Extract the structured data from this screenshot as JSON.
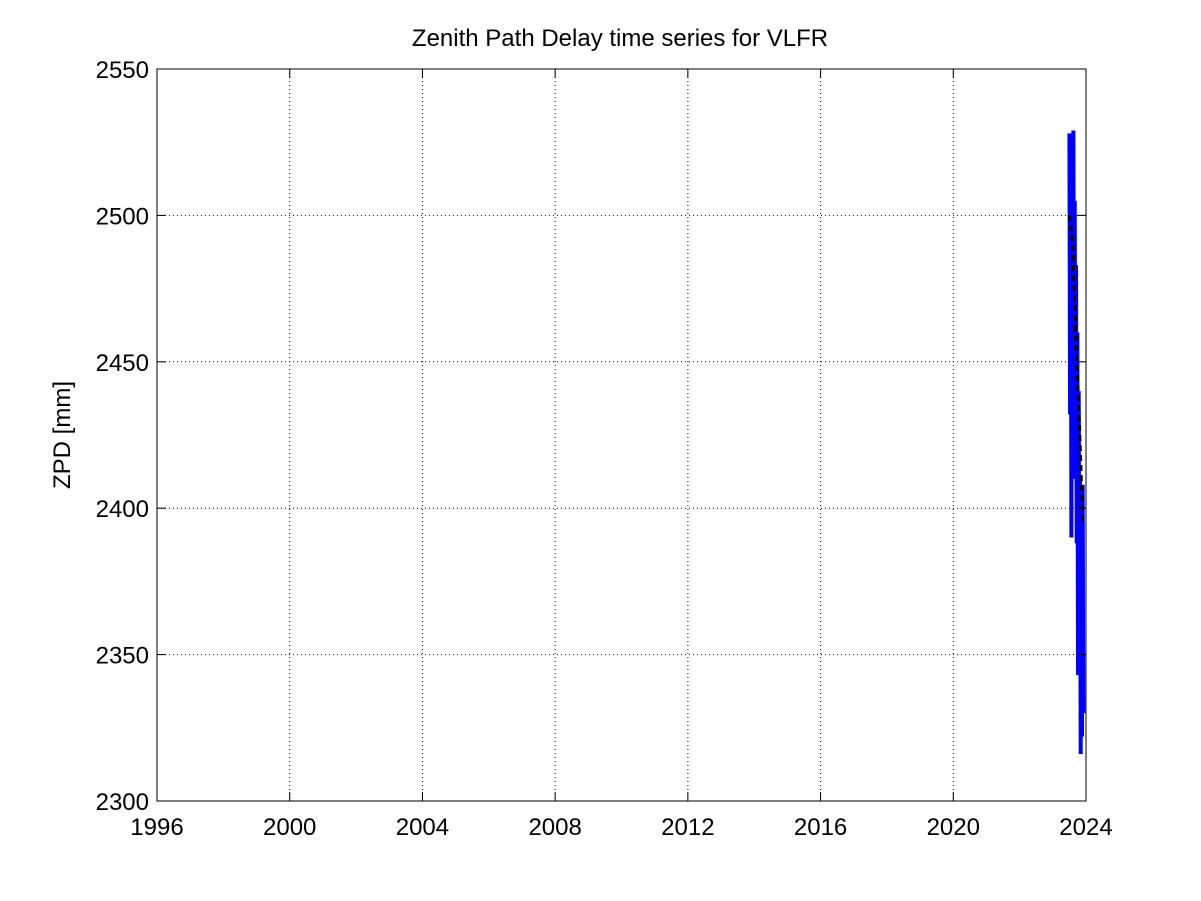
{
  "chart_data": {
    "type": "line",
    "title": "Zenith Path Delay time series for VLFR",
    "xlabel": "",
    "ylabel": "ZPD [mm]",
    "xlim": [
      1996,
      2024
    ],
    "ylim": [
      2300,
      2550
    ],
    "x_ticks": [
      1996,
      2000,
      2004,
      2008,
      2012,
      2016,
      2020,
      2024
    ],
    "x_tick_labels": [
      "1996",
      "2000",
      "2004",
      "2008",
      "2012",
      "2016",
      "2020",
      "2024"
    ],
    "y_ticks": [
      2300,
      2350,
      2400,
      2450,
      2500,
      2550
    ],
    "y_tick_labels": [
      "2300",
      "2350",
      "2400",
      "2450",
      "2500",
      "2550"
    ],
    "grid": true,
    "legend": "none",
    "series": [
      {
        "style": "solid",
        "color": "#0000ff",
        "x": [
          2023.5,
          2023.52,
          2023.54,
          2023.56,
          2023.58,
          2023.6,
          2023.62,
          2023.64,
          2023.66,
          2023.68,
          2023.7,
          2023.72,
          2023.74,
          2023.76,
          2023.78,
          2023.8,
          2023.82,
          2023.84,
          2023.86,
          2023.88,
          2023.9,
          2023.92
        ],
        "y": [
          2528,
          2432,
          2525,
          2390,
          2520,
          2418,
          2529,
          2430,
          2505,
          2410,
          2483,
          2388,
          2460,
          2343,
          2440,
          2370,
          2410,
          2316,
          2400,
          2322,
          2408,
          2330
        ]
      },
      {
        "style": "dashed",
        "color": "#000000",
        "x": [
          2023.5,
          2023.6,
          2023.7,
          2023.8,
          2023.9
        ],
        "y": [
          2500,
          2490,
          2455,
          2430,
          2395
        ]
      }
    ]
  }
}
